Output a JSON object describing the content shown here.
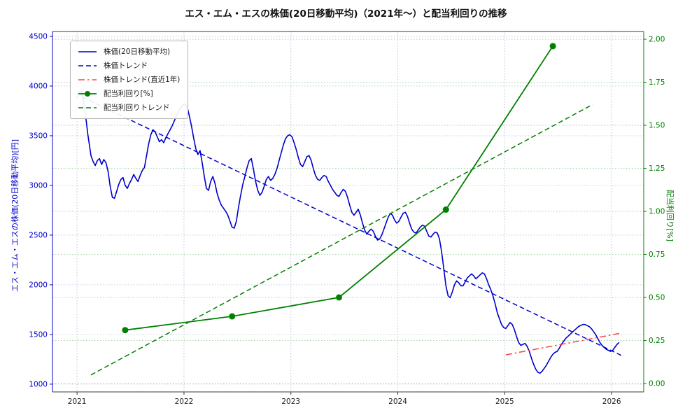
{
  "chart_data": {
    "type": "line",
    "title": "エス・エム・エスの株価(20日移動平均)（2021年～）と配当利回りの推移",
    "legend_position": "upper-left",
    "grid": true,
    "axes": {
      "x": {
        "lim": [
          2020.77,
          2026.3
        ],
        "ticks": [
          2021,
          2022,
          2023,
          2024,
          2025,
          2026
        ],
        "tick_labels": [
          "2021",
          "2022",
          "2023",
          "2024",
          "2025",
          "2026"
        ]
      },
      "y_left": {
        "label": "エス・エム・エスの株価(20日移動平均)[円]",
        "color": "#0000cd",
        "lim": [
          922,
          4549
        ],
        "ticks": [
          1000,
          1500,
          2000,
          2500,
          3000,
          3500,
          4000,
          4500
        ]
      },
      "y_right": {
        "label": "配当利回り[%]",
        "color": "#008000",
        "lim": [
          -0.049,
          2.045
        ],
        "ticks": [
          0,
          0.25,
          0.5,
          0.75,
          1,
          1.25,
          1.5,
          1.75,
          2
        ]
      }
    },
    "series": [
      {
        "key": "price-ma20-line",
        "name": "株価(20日移動平均)",
        "axis": "left",
        "style": "solid",
        "color": "#0000cd",
        "width": 1.6,
        "points": [
          [
            2021.0,
            3880
          ],
          [
            2021.02,
            3940
          ],
          [
            2021.04,
            3950
          ],
          [
            2021.06,
            3850
          ],
          [
            2021.08,
            3700
          ],
          [
            2021.1,
            3520
          ],
          [
            2021.13,
            3300
          ],
          [
            2021.15,
            3240
          ],
          [
            2021.17,
            3200
          ],
          [
            2021.19,
            3250
          ],
          [
            2021.21,
            3270
          ],
          [
            2021.23,
            3210
          ],
          [
            2021.25,
            3260
          ],
          [
            2021.27,
            3230
          ],
          [
            2021.29,
            3140
          ],
          [
            2021.31,
            2990
          ],
          [
            2021.33,
            2880
          ],
          [
            2021.35,
            2870
          ],
          [
            2021.37,
            2940
          ],
          [
            2021.39,
            3010
          ],
          [
            2021.41,
            3060
          ],
          [
            2021.43,
            3080
          ],
          [
            2021.45,
            3000
          ],
          [
            2021.47,
            2970
          ],
          [
            2021.49,
            3020
          ],
          [
            2021.51,
            3060
          ],
          [
            2021.53,
            3110
          ],
          [
            2021.55,
            3070
          ],
          [
            2021.57,
            3040
          ],
          [
            2021.59,
            3100
          ],
          [
            2021.61,
            3150
          ],
          [
            2021.63,
            3180
          ],
          [
            2021.65,
            3300
          ],
          [
            2021.67,
            3420
          ],
          [
            2021.69,
            3510
          ],
          [
            2021.71,
            3560
          ],
          [
            2021.73,
            3540
          ],
          [
            2021.75,
            3490
          ],
          [
            2021.77,
            3440
          ],
          [
            2021.79,
            3460
          ],
          [
            2021.81,
            3430
          ],
          [
            2021.83,
            3480
          ],
          [
            2021.85,
            3520
          ],
          [
            2021.87,
            3560
          ],
          [
            2021.89,
            3600
          ],
          [
            2021.91,
            3650
          ],
          [
            2021.93,
            3700
          ],
          [
            2021.95,
            3750
          ],
          [
            2021.97,
            3780
          ],
          [
            2021.99,
            3810
          ],
          [
            2022.01,
            3820
          ],
          [
            2022.03,
            3790
          ],
          [
            2022.05,
            3700
          ],
          [
            2022.07,
            3600
          ],
          [
            2022.09,
            3480
          ],
          [
            2022.11,
            3370
          ],
          [
            2022.13,
            3310
          ],
          [
            2022.15,
            3350
          ],
          [
            2022.17,
            3230
          ],
          [
            2022.19,
            3090
          ],
          [
            2022.21,
            2970
          ],
          [
            2022.23,
            2950
          ],
          [
            2022.25,
            3040
          ],
          [
            2022.27,
            3090
          ],
          [
            2022.29,
            3020
          ],
          [
            2022.31,
            2920
          ],
          [
            2022.33,
            2850
          ],
          [
            2022.35,
            2800
          ],
          [
            2022.37,
            2770
          ],
          [
            2022.39,
            2740
          ],
          [
            2022.41,
            2700
          ],
          [
            2022.43,
            2640
          ],
          [
            2022.45,
            2580
          ],
          [
            2022.47,
            2570
          ],
          [
            2022.49,
            2640
          ],
          [
            2022.51,
            2780
          ],
          [
            2022.53,
            2900
          ],
          [
            2022.55,
            3010
          ],
          [
            2022.57,
            3090
          ],
          [
            2022.59,
            3180
          ],
          [
            2022.61,
            3250
          ],
          [
            2022.63,
            3270
          ],
          [
            2022.65,
            3160
          ],
          [
            2022.67,
            3040
          ],
          [
            2022.69,
            2950
          ],
          [
            2022.71,
            2900
          ],
          [
            2022.73,
            2930
          ],
          [
            2022.75,
            2990
          ],
          [
            2022.77,
            3060
          ],
          [
            2022.79,
            3090
          ],
          [
            2022.81,
            3050
          ],
          [
            2022.83,
            3070
          ],
          [
            2022.85,
            3110
          ],
          [
            2022.87,
            3170
          ],
          [
            2022.89,
            3250
          ],
          [
            2022.91,
            3330
          ],
          [
            2022.93,
            3410
          ],
          [
            2022.95,
            3470
          ],
          [
            2022.97,
            3500
          ],
          [
            2022.99,
            3510
          ],
          [
            2023.01,
            3490
          ],
          [
            2023.03,
            3430
          ],
          [
            2023.05,
            3360
          ],
          [
            2023.07,
            3280
          ],
          [
            2023.09,
            3210
          ],
          [
            2023.11,
            3190
          ],
          [
            2023.13,
            3240
          ],
          [
            2023.15,
            3290
          ],
          [
            2023.17,
            3300
          ],
          [
            2023.19,
            3250
          ],
          [
            2023.21,
            3170
          ],
          [
            2023.23,
            3100
          ],
          [
            2023.25,
            3060
          ],
          [
            2023.27,
            3050
          ],
          [
            2023.29,
            3080
          ],
          [
            2023.31,
            3100
          ],
          [
            2023.33,
            3090
          ],
          [
            2023.35,
            3040
          ],
          [
            2023.37,
            3000
          ],
          [
            2023.39,
            2960
          ],
          [
            2023.41,
            2930
          ],
          [
            2023.43,
            2900
          ],
          [
            2023.45,
            2890
          ],
          [
            2023.47,
            2930
          ],
          [
            2023.49,
            2960
          ],
          [
            2023.51,
            2940
          ],
          [
            2023.53,
            2880
          ],
          [
            2023.55,
            2800
          ],
          [
            2023.57,
            2730
          ],
          [
            2023.59,
            2700
          ],
          [
            2023.61,
            2730
          ],
          [
            2023.63,
            2760
          ],
          [
            2023.65,
            2700
          ],
          [
            2023.67,
            2620
          ],
          [
            2023.69,
            2550
          ],
          [
            2023.71,
            2510
          ],
          [
            2023.73,
            2540
          ],
          [
            2023.75,
            2560
          ],
          [
            2023.77,
            2540
          ],
          [
            2023.79,
            2490
          ],
          [
            2023.81,
            2450
          ],
          [
            2023.83,
            2460
          ],
          [
            2023.85,
            2500
          ],
          [
            2023.87,
            2560
          ],
          [
            2023.89,
            2620
          ],
          [
            2023.91,
            2680
          ],
          [
            2023.93,
            2720
          ],
          [
            2023.95,
            2700
          ],
          [
            2023.97,
            2650
          ],
          [
            2023.99,
            2620
          ],
          [
            2024.01,
            2640
          ],
          [
            2024.03,
            2680
          ],
          [
            2024.05,
            2720
          ],
          [
            2024.07,
            2730
          ],
          [
            2024.09,
            2690
          ],
          [
            2024.11,
            2620
          ],
          [
            2024.13,
            2560
          ],
          [
            2024.15,
            2530
          ],
          [
            2024.17,
            2520
          ],
          [
            2024.19,
            2550
          ],
          [
            2024.21,
            2580
          ],
          [
            2024.23,
            2600
          ],
          [
            2024.25,
            2590
          ],
          [
            2024.27,
            2540
          ],
          [
            2024.29,
            2490
          ],
          [
            2024.31,
            2480
          ],
          [
            2024.33,
            2510
          ],
          [
            2024.35,
            2530
          ],
          [
            2024.37,
            2520
          ],
          [
            2024.39,
            2460
          ],
          [
            2024.41,
            2330
          ],
          [
            2024.43,
            2160
          ],
          [
            2024.45,
            1990
          ],
          [
            2024.47,
            1890
          ],
          [
            2024.49,
            1870
          ],
          [
            2024.51,
            1930
          ],
          [
            2024.53,
            2000
          ],
          [
            2024.55,
            2040
          ],
          [
            2024.57,
            2020
          ],
          [
            2024.59,
            1990
          ],
          [
            2024.61,
            1990
          ],
          [
            2024.63,
            2030
          ],
          [
            2024.65,
            2070
          ],
          [
            2024.67,
            2090
          ],
          [
            2024.69,
            2110
          ],
          [
            2024.71,
            2090
          ],
          [
            2024.73,
            2060
          ],
          [
            2024.75,
            2080
          ],
          [
            2024.77,
            2100
          ],
          [
            2024.79,
            2120
          ],
          [
            2024.81,
            2110
          ],
          [
            2024.83,
            2060
          ],
          [
            2024.85,
            2000
          ],
          [
            2024.87,
            1950
          ],
          [
            2024.89,
            1890
          ],
          [
            2024.91,
            1810
          ],
          [
            2024.93,
            1720
          ],
          [
            2024.95,
            1660
          ],
          [
            2024.97,
            1600
          ],
          [
            2024.99,
            1570
          ],
          [
            2025.01,
            1560
          ],
          [
            2025.03,
            1590
          ],
          [
            2025.05,
            1620
          ],
          [
            2025.07,
            1600
          ],
          [
            2025.09,
            1550
          ],
          [
            2025.11,
            1480
          ],
          [
            2025.13,
            1420
          ],
          [
            2025.15,
            1390
          ],
          [
            2025.17,
            1400
          ],
          [
            2025.19,
            1410
          ],
          [
            2025.21,
            1380
          ],
          [
            2025.23,
            1330
          ],
          [
            2025.25,
            1260
          ],
          [
            2025.27,
            1200
          ],
          [
            2025.29,
            1150
          ],
          [
            2025.31,
            1120
          ],
          [
            2025.33,
            1110
          ],
          [
            2025.35,
            1130
          ],
          [
            2025.37,
            1160
          ],
          [
            2025.39,
            1190
          ],
          [
            2025.41,
            1230
          ],
          [
            2025.43,
            1270
          ],
          [
            2025.45,
            1300
          ],
          [
            2025.47,
            1320
          ],
          [
            2025.49,
            1330
          ],
          [
            2025.51,
            1360
          ],
          [
            2025.53,
            1400
          ],
          [
            2025.55,
            1430
          ],
          [
            2025.57,
            1460
          ],
          [
            2025.59,
            1480
          ],
          [
            2025.61,
            1500
          ],
          [
            2025.63,
            1520
          ],
          [
            2025.65,
            1540
          ],
          [
            2025.67,
            1560
          ],
          [
            2025.69,
            1580
          ],
          [
            2025.71,
            1590
          ],
          [
            2025.73,
            1600
          ],
          [
            2025.75,
            1600
          ],
          [
            2025.77,
            1590
          ],
          [
            2025.79,
            1580
          ],
          [
            2025.81,
            1560
          ],
          [
            2025.83,
            1530
          ],
          [
            2025.85,
            1500
          ],
          [
            2025.87,
            1460
          ],
          [
            2025.89,
            1420
          ],
          [
            2025.91,
            1390
          ],
          [
            2025.93,
            1370
          ],
          [
            2025.95,
            1350
          ],
          [
            2025.97,
            1340
          ],
          [
            2025.99,
            1330
          ],
          [
            2026.01,
            1340
          ],
          [
            2026.03,
            1370
          ],
          [
            2026.05,
            1400
          ],
          [
            2026.07,
            1420
          ]
        ]
      },
      {
        "key": "price-trend-line",
        "name": "株価トレンド",
        "axis": "left",
        "style": "dashed",
        "color": "#0000cd",
        "width": 1.5,
        "points": [
          [
            2021.05,
            3890
          ],
          [
            2026.1,
            1285
          ]
        ]
      },
      {
        "key": "price-trend-recent-line",
        "name": "株価トレンド(直近1年)",
        "axis": "left",
        "style": "dashdot",
        "color": "#ff4040",
        "width": 1.5,
        "points": [
          [
            2025.01,
            1295
          ],
          [
            2026.07,
            1510
          ]
        ]
      },
      {
        "key": "dividend-yield-line",
        "name": "配当利回り[%]",
        "axis": "right",
        "style": "solid",
        "color": "#008000",
        "width": 1.8,
        "marker": "circle",
        "points": [
          [
            2021.45,
            0.31
          ],
          [
            2022.45,
            0.39
          ],
          [
            2023.45,
            0.5
          ],
          [
            2024.45,
            1.01
          ],
          [
            2025.45,
            1.96
          ]
        ]
      },
      {
        "key": "dividend-yield-trend-line",
        "name": "配当利回りトレンド",
        "axis": "right",
        "style": "dashed",
        "color": "#008000",
        "width": 1.5,
        "points": [
          [
            2021.13,
            0.05
          ],
          [
            2025.82,
            1.62
          ]
        ]
      }
    ]
  }
}
